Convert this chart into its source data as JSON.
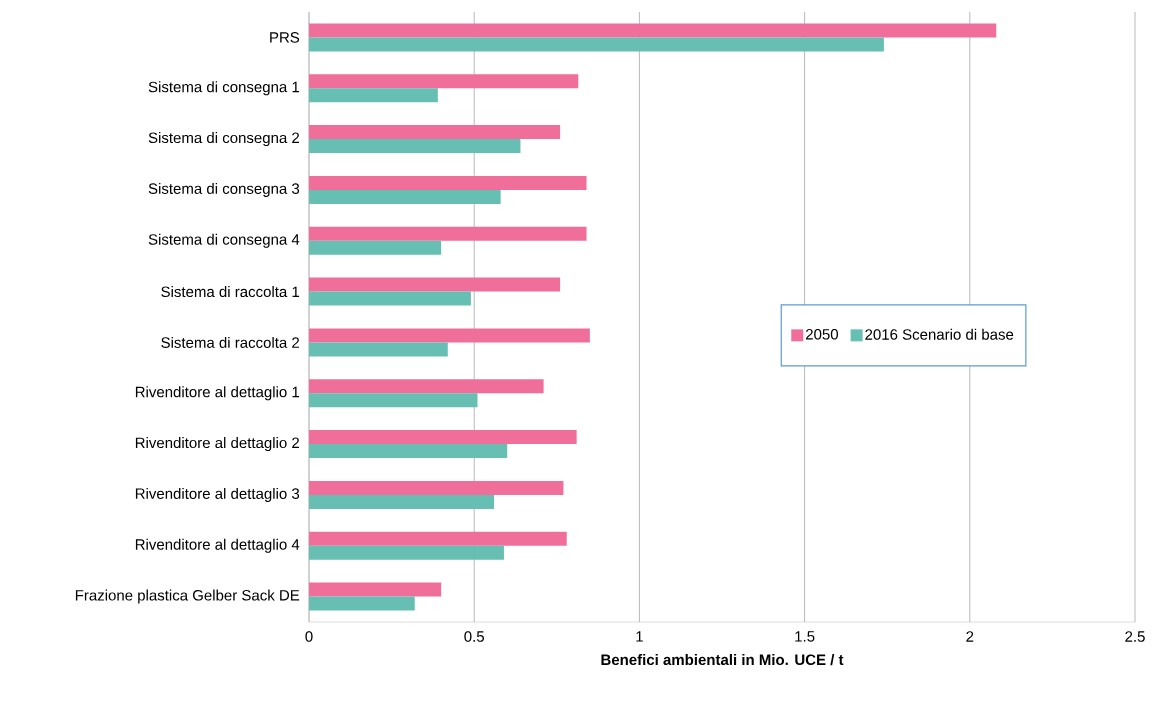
{
  "chart_data": {
    "type": "bar",
    "orientation": "horizontal",
    "xlabel": "Benefici ambientali in Mio. UCE / t",
    "categories": [
      "PRS",
      "Sistema di consegna 1",
      "Sistema di consegna 2",
      "Sistema di consegna 3",
      "Sistema di consegna 4",
      "Sistema di raccolta 1",
      "Sistema di raccolta 2",
      "Rivenditore al dettaglio 1",
      "Rivenditore al dettaglio 2",
      "Rivenditore al dettaglio 3",
      "Rivenditore al dettaglio 4",
      "Frazione plastica Gelber Sack DE"
    ],
    "series": [
      {
        "name": "2050",
        "color": "#f06e9a",
        "values": [
          2.08,
          0.815,
          0.76,
          0.84,
          0.84,
          0.76,
          0.85,
          0.71,
          0.81,
          0.77,
          0.78,
          0.4
        ]
      },
      {
        "name": "2016 Scenario di base",
        "color": "#66bfb2",
        "values": [
          1.74,
          0.39,
          0.64,
          0.58,
          0.4,
          0.49,
          0.42,
          0.51,
          0.6,
          0.56,
          0.59,
          0.32
        ]
      }
    ],
    "xlim": [
      0,
      2.5
    ],
    "xticks": [
      0,
      0.5,
      1,
      1.5,
      2,
      2.5
    ],
    "grid": "x",
    "legend": "right"
  }
}
